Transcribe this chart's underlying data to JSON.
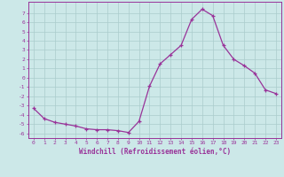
{
  "x": [
    0,
    1,
    2,
    3,
    4,
    5,
    6,
    7,
    8,
    9,
    10,
    11,
    12,
    13,
    14,
    15,
    16,
    17,
    18,
    19,
    20,
    21,
    22,
    23
  ],
  "y": [
    -3.3,
    -4.4,
    -4.8,
    -5.0,
    -5.2,
    -5.5,
    -5.6,
    -5.6,
    -5.7,
    -5.9,
    -4.7,
    -0.9,
    1.5,
    2.5,
    3.5,
    6.3,
    7.4,
    6.7,
    3.5,
    2.0,
    1.3,
    0.5,
    -1.3,
    -1.7
  ],
  "line_color": "#993399",
  "marker": "+",
  "marker_size": 3,
  "linewidth": 0.9,
  "bg_color": "#cce8e8",
  "grid_color": "#aacccc",
  "xlabel": "Windchill (Refroidissement éolien,°C)",
  "yticks": [
    -6,
    -5,
    -4,
    -3,
    -2,
    -1,
    0,
    1,
    2,
    3,
    4,
    5,
    6,
    7
  ],
  "xticks": [
    0,
    1,
    2,
    3,
    4,
    5,
    6,
    7,
    8,
    9,
    10,
    11,
    12,
    13,
    14,
    15,
    16,
    17,
    18,
    19,
    20,
    21,
    22,
    23
  ],
  "ylim": [
    -6.5,
    8.2
  ],
  "xlim": [
    -0.5,
    23.5
  ],
  "tick_color": "#993399",
  "label_color": "#993399",
  "spine_color": "#993399"
}
